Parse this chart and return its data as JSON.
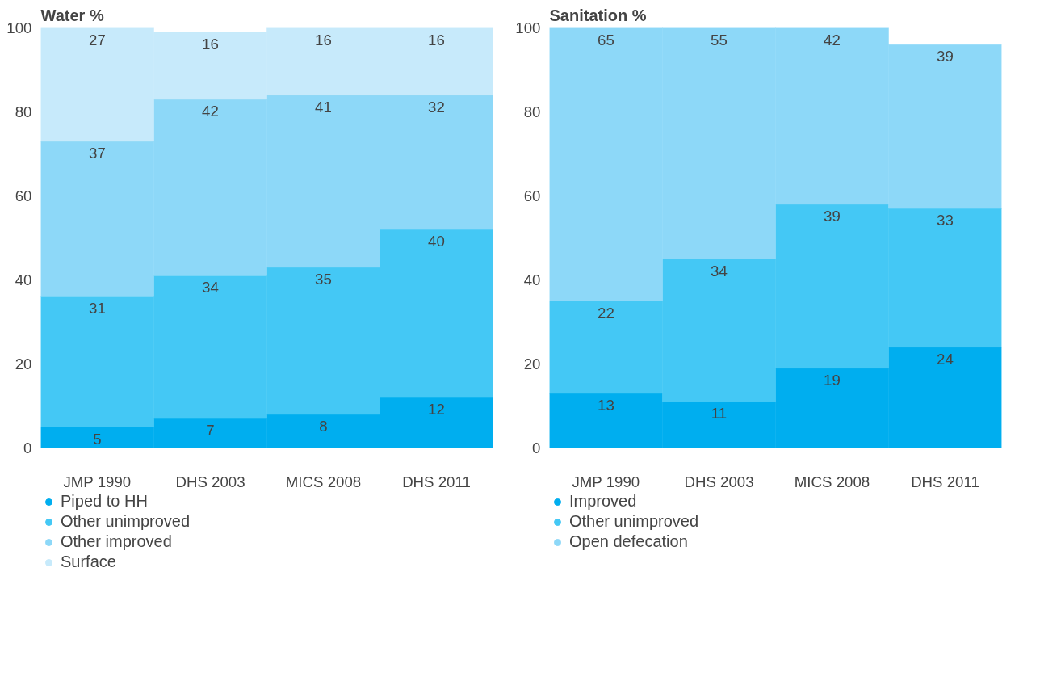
{
  "chart_data": [
    {
      "type": "bar",
      "title": "Water %",
      "stacked": true,
      "categories": [
        "JMP 1990",
        "DHS 2003",
        "MICS 2008",
        "DHS 2011"
      ],
      "ylim": [
        0,
        100
      ],
      "yticks": [
        0,
        20,
        40,
        60,
        80,
        100
      ],
      "grid": false,
      "legend": "bottom",
      "data_labels": true,
      "series": [
        {
          "name": "Piped to HH",
          "color": "#00aeef",
          "values": [
            5,
            7,
            8,
            12
          ]
        },
        {
          "name": "Other unimproved",
          "color": "#44c8f5",
          "values": [
            31,
            34,
            35,
            40
          ]
        },
        {
          "name": "Other improved",
          "color": "#8dd8f8",
          "values": [
            37,
            42,
            41,
            32
          ]
        },
        {
          "name": "Surface",
          "color": "#c7eafb",
          "values": [
            27,
            16,
            16,
            16
          ]
        }
      ]
    },
    {
      "type": "bar",
      "title": "Sanitation %",
      "stacked": true,
      "categories": [
        "JMP 1990",
        "DHS 2003",
        "MICS 2008",
        "DHS 2011"
      ],
      "ylim": [
        0,
        100
      ],
      "yticks": [
        0,
        20,
        40,
        60,
        80,
        100
      ],
      "grid": false,
      "legend": "bottom",
      "data_labels": true,
      "series": [
        {
          "name": "Improved",
          "color": "#00aeef",
          "values": [
            13,
            11,
            19,
            24
          ]
        },
        {
          "name": "Other unimproved",
          "color": "#44c8f5",
          "values": [
            22,
            34,
            39,
            33
          ]
        },
        {
          "name": "Open defecation",
          "color": "#8dd8f8",
          "values": [
            65,
            55,
            42,
            39
          ]
        }
      ]
    }
  ]
}
